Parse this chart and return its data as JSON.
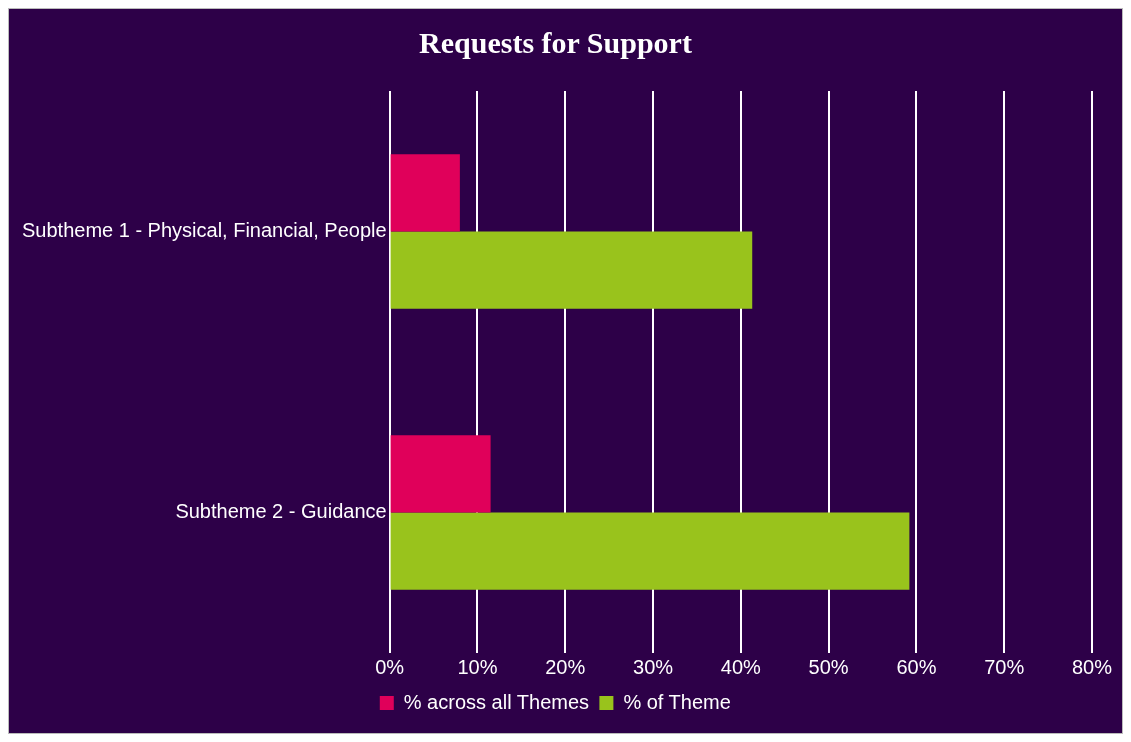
{
  "chart_data": {
    "type": "bar",
    "orientation": "horizontal",
    "title": "Requests for Support",
    "categories": [
      "Subtheme 1 - Physical, Financial, People",
      "Subtheme 2 - Guidance"
    ],
    "series": [
      {
        "name": "% across all Themes",
        "color": "#e0005a",
        "values": [
          8,
          11.5
        ]
      },
      {
        "name": "% of Theme",
        "color": "#99c31c",
        "values": [
          41.3,
          59.2
        ]
      }
    ],
    "xlim": [
      0,
      80
    ],
    "xticks": [
      {
        "value": 0,
        "label": "0%"
      },
      {
        "value": 10,
        "label": "10%"
      },
      {
        "value": 20,
        "label": "20%"
      },
      {
        "value": 30,
        "label": "30%"
      },
      {
        "value": 40,
        "label": "40%"
      },
      {
        "value": 50,
        "label": "50%"
      },
      {
        "value": 60,
        "label": "60%"
      },
      {
        "value": 70,
        "label": "70%"
      },
      {
        "value": 80,
        "label": "80%"
      }
    ],
    "grid": "x",
    "legend": "bottom"
  }
}
